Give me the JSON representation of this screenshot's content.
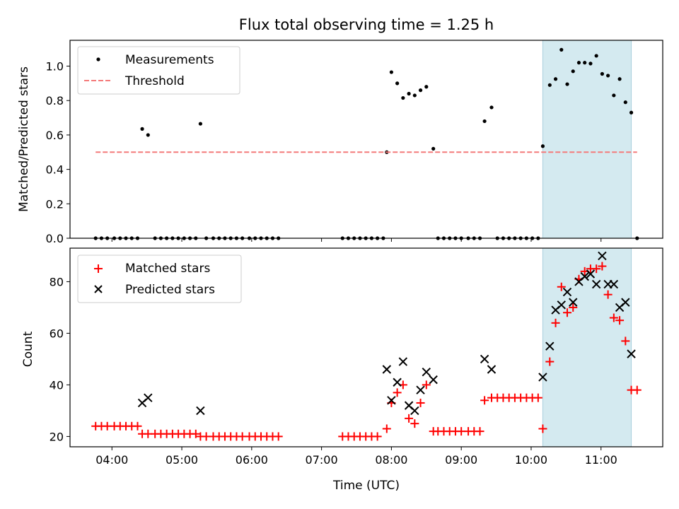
{
  "chart_data": [
    {
      "type": "scatter",
      "title": "Flux total observing time = 1.25 h",
      "xlabel": "",
      "ylabel": "Matched/Predicted stars",
      "xlim": [
        "03:24",
        "11:53"
      ],
      "ylim": [
        0,
        1.15
      ],
      "xticks": [
        "04:00",
        "05:00",
        "06:00",
        "07:00",
        "08:00",
        "09:00",
        "10:00",
        "11:00"
      ],
      "yticks": [
        "0.0",
        "0.2",
        "0.4",
        "0.6",
        "0.8",
        "1.0"
      ],
      "highlight_span": [
        "10:10",
        "11:26"
      ],
      "highlight_color": "#d4eaf0",
      "legend_position": "upper left",
      "legend": [
        "Measurements",
        "Threshold"
      ],
      "series": [
        {
          "name": "Measurements",
          "marker": "dot",
          "color": "#000000",
          "points": [
            [
              "03:46",
              0
            ],
            [
              "03:51",
              0
            ],
            [
              "03:56",
              0
            ],
            [
              "04:02",
              0
            ],
            [
              "04:07",
              0
            ],
            [
              "04:12",
              0
            ],
            [
              "04:17",
              0
            ],
            [
              "04:22",
              0
            ],
            [
              "04:26",
              0.635
            ],
            [
              "04:31",
              0.6
            ],
            [
              "04:37",
              0
            ],
            [
              "04:42",
              0
            ],
            [
              "04:47",
              0
            ],
            [
              "04:52",
              0
            ],
            [
              "04:57",
              0
            ],
            [
              "05:02",
              0
            ],
            [
              "05:07",
              0
            ],
            [
              "05:12",
              0
            ],
            [
              "05:16",
              0.665
            ],
            [
              "05:21",
              0
            ],
            [
              "05:27",
              0
            ],
            [
              "05:32",
              0
            ],
            [
              "05:37",
              0
            ],
            [
              "05:42",
              0
            ],
            [
              "05:47",
              0
            ],
            [
              "05:52",
              0
            ],
            [
              "05:58",
              0
            ],
            [
              "06:03",
              0
            ],
            [
              "06:08",
              0
            ],
            [
              "06:13",
              0
            ],
            [
              "06:18",
              0
            ],
            [
              "06:23",
              0
            ],
            [
              "07:18",
              0
            ],
            [
              "07:23",
              0
            ],
            [
              "07:28",
              0
            ],
            [
              "07:33",
              0
            ],
            [
              "07:38",
              0
            ],
            [
              "07:43",
              0
            ],
            [
              "07:48",
              0
            ],
            [
              "07:53",
              0
            ],
            [
              "07:56",
              0.5
            ],
            [
              "08:00",
              0.965
            ],
            [
              "08:05",
              0.9
            ],
            [
              "08:10",
              0.815
            ],
            [
              "08:15",
              0.84
            ],
            [
              "08:20",
              0.83
            ],
            [
              "08:25",
              0.86
            ],
            [
              "08:30",
              0.88
            ],
            [
              "08:36",
              0.52
            ],
            [
              "08:40",
              0
            ],
            [
              "08:45",
              0
            ],
            [
              "08:50",
              0
            ],
            [
              "08:55",
              0
            ],
            [
              "09:00",
              0
            ],
            [
              "09:06",
              0
            ],
            [
              "09:11",
              0
            ],
            [
              "09:16",
              0
            ],
            [
              "09:20",
              0.68
            ],
            [
              "09:26",
              0.76
            ],
            [
              "09:31",
              0
            ],
            [
              "09:36",
              0
            ],
            [
              "09:41",
              0
            ],
            [
              "09:46",
              0
            ],
            [
              "09:51",
              0
            ],
            [
              "09:56",
              0
            ],
            [
              "10:01",
              0
            ],
            [
              "10:06",
              0
            ],
            [
              "10:10",
              0.535
            ],
            [
              "10:16",
              0.89
            ],
            [
              "10:21",
              0.925
            ],
            [
              "10:26",
              1.095
            ],
            [
              "10:31",
              0.895
            ],
            [
              "10:36",
              0.97
            ],
            [
              "10:41",
              1.02
            ],
            [
              "10:46",
              1.02
            ],
            [
              "10:51",
              1.015
            ],
            [
              "10:56",
              1.06
            ],
            [
              "11:01",
              0.955
            ],
            [
              "11:06",
              0.945
            ],
            [
              "11:11",
              0.83
            ],
            [
              "11:16",
              0.925
            ],
            [
              "11:21",
              0.79
            ],
            [
              "11:26",
              0.73
            ],
            [
              "11:31",
              0
            ]
          ]
        },
        {
          "name": "Threshold",
          "style": "dashed",
          "color": "#f47a7a",
          "x": [
            "03:46",
            "11:31"
          ],
          "y": [
            0.5,
            0.5
          ]
        }
      ]
    },
    {
      "type": "scatter",
      "title": "",
      "xlabel": "Time (UTC)",
      "ylabel": "Count",
      "xlim": [
        "03:24",
        "11:53"
      ],
      "ylim": [
        16,
        93
      ],
      "xticks": [
        "04:00",
        "05:00",
        "06:00",
        "07:00",
        "08:00",
        "09:00",
        "10:00",
        "11:00"
      ],
      "yticks": [
        "20",
        "40",
        "60",
        "80"
      ],
      "highlight_span": [
        "10:10",
        "11:26"
      ],
      "highlight_color": "#d4eaf0",
      "legend_position": "upper left",
      "legend": [
        "Matched stars",
        "Predicted stars"
      ],
      "series": [
        {
          "name": "Matched stars",
          "marker": "plus",
          "color": "#ff0000",
          "points": [
            [
              "03:46",
              24
            ],
            [
              "03:51",
              24
            ],
            [
              "03:56",
              24
            ],
            [
              "04:02",
              24
            ],
            [
              "04:07",
              24
            ],
            [
              "04:12",
              24
            ],
            [
              "04:17",
              24
            ],
            [
              "04:22",
              24
            ],
            [
              "04:26",
              21
            ],
            [
              "04:31",
              21
            ],
            [
              "04:37",
              21
            ],
            [
              "04:42",
              21
            ],
            [
              "04:47",
              21
            ],
            [
              "04:52",
              21
            ],
            [
              "04:57",
              21
            ],
            [
              "05:02",
              21
            ],
            [
              "05:07",
              21
            ],
            [
              "05:12",
              21
            ],
            [
              "05:16",
              20
            ],
            [
              "05:21",
              20
            ],
            [
              "05:27",
              20
            ],
            [
              "05:32",
              20
            ],
            [
              "05:37",
              20
            ],
            [
              "05:42",
              20
            ],
            [
              "05:47",
              20
            ],
            [
              "05:52",
              20
            ],
            [
              "05:58",
              20
            ],
            [
              "06:03",
              20
            ],
            [
              "06:08",
              20
            ],
            [
              "06:13",
              20
            ],
            [
              "06:18",
              20
            ],
            [
              "06:23",
              20
            ],
            [
              "07:18",
              20
            ],
            [
              "07:23",
              20
            ],
            [
              "07:28",
              20
            ],
            [
              "07:33",
              20
            ],
            [
              "07:38",
              20
            ],
            [
              "07:43",
              20
            ],
            [
              "07:48",
              20
            ],
            [
              "07:56",
              23
            ],
            [
              "08:00",
              33
            ],
            [
              "08:05",
              37
            ],
            [
              "08:10",
              40
            ],
            [
              "08:15",
              27
            ],
            [
              "08:20",
              25
            ],
            [
              "08:25",
              33
            ],
            [
              "08:30",
              40
            ],
            [
              "08:36",
              22
            ],
            [
              "08:40",
              22
            ],
            [
              "08:45",
              22
            ],
            [
              "08:50",
              22
            ],
            [
              "08:55",
              22
            ],
            [
              "09:00",
              22
            ],
            [
              "09:06",
              22
            ],
            [
              "09:11",
              22
            ],
            [
              "09:16",
              22
            ],
            [
              "09:20",
              34
            ],
            [
              "09:26",
              35
            ],
            [
              "09:31",
              35
            ],
            [
              "09:36",
              35
            ],
            [
              "09:41",
              35
            ],
            [
              "09:46",
              35
            ],
            [
              "09:51",
              35
            ],
            [
              "09:56",
              35
            ],
            [
              "10:01",
              35
            ],
            [
              "10:06",
              35
            ],
            [
              "10:10",
              23
            ],
            [
              "10:16",
              49
            ],
            [
              "10:21",
              64
            ],
            [
              "10:26",
              78
            ],
            [
              "10:31",
              68
            ],
            [
              "10:36",
              70
            ],
            [
              "10:41",
              81
            ],
            [
              "10:46",
              84
            ],
            [
              "10:51",
              85
            ],
            [
              "10:56",
              85
            ],
            [
              "11:01",
              86
            ],
            [
              "11:06",
              75
            ],
            [
              "11:11",
              66
            ],
            [
              "11:16",
              65
            ],
            [
              "11:21",
              57
            ],
            [
              "11:26",
              38
            ],
            [
              "11:31",
              38
            ]
          ]
        },
        {
          "name": "Predicted stars",
          "marker": "x",
          "color": "#000000",
          "points": [
            [
              "04:26",
              33
            ],
            [
              "04:31",
              35
            ],
            [
              "05:16",
              30
            ],
            [
              "07:56",
              46
            ],
            [
              "08:00",
              34
            ],
            [
              "08:05",
              41
            ],
            [
              "08:10",
              49
            ],
            [
              "08:15",
              32
            ],
            [
              "08:20",
              30
            ],
            [
              "08:25",
              38
            ],
            [
              "08:30",
              45
            ],
            [
              "08:36",
              42
            ],
            [
              "09:20",
              50
            ],
            [
              "09:26",
              46
            ],
            [
              "10:10",
              43
            ],
            [
              "10:16",
              55
            ],
            [
              "10:21",
              69
            ],
            [
              "10:26",
              71
            ],
            [
              "10:31",
              76
            ],
            [
              "10:36",
              72
            ],
            [
              "10:41",
              80
            ],
            [
              "10:46",
              82
            ],
            [
              "10:51",
              83
            ],
            [
              "10:56",
              79
            ],
            [
              "11:01",
              90
            ],
            [
              "11:06",
              79
            ],
            [
              "11:11",
              79
            ],
            [
              "11:16",
              70
            ],
            [
              "11:21",
              72
            ],
            [
              "11:26",
              52
            ]
          ]
        }
      ]
    }
  ]
}
